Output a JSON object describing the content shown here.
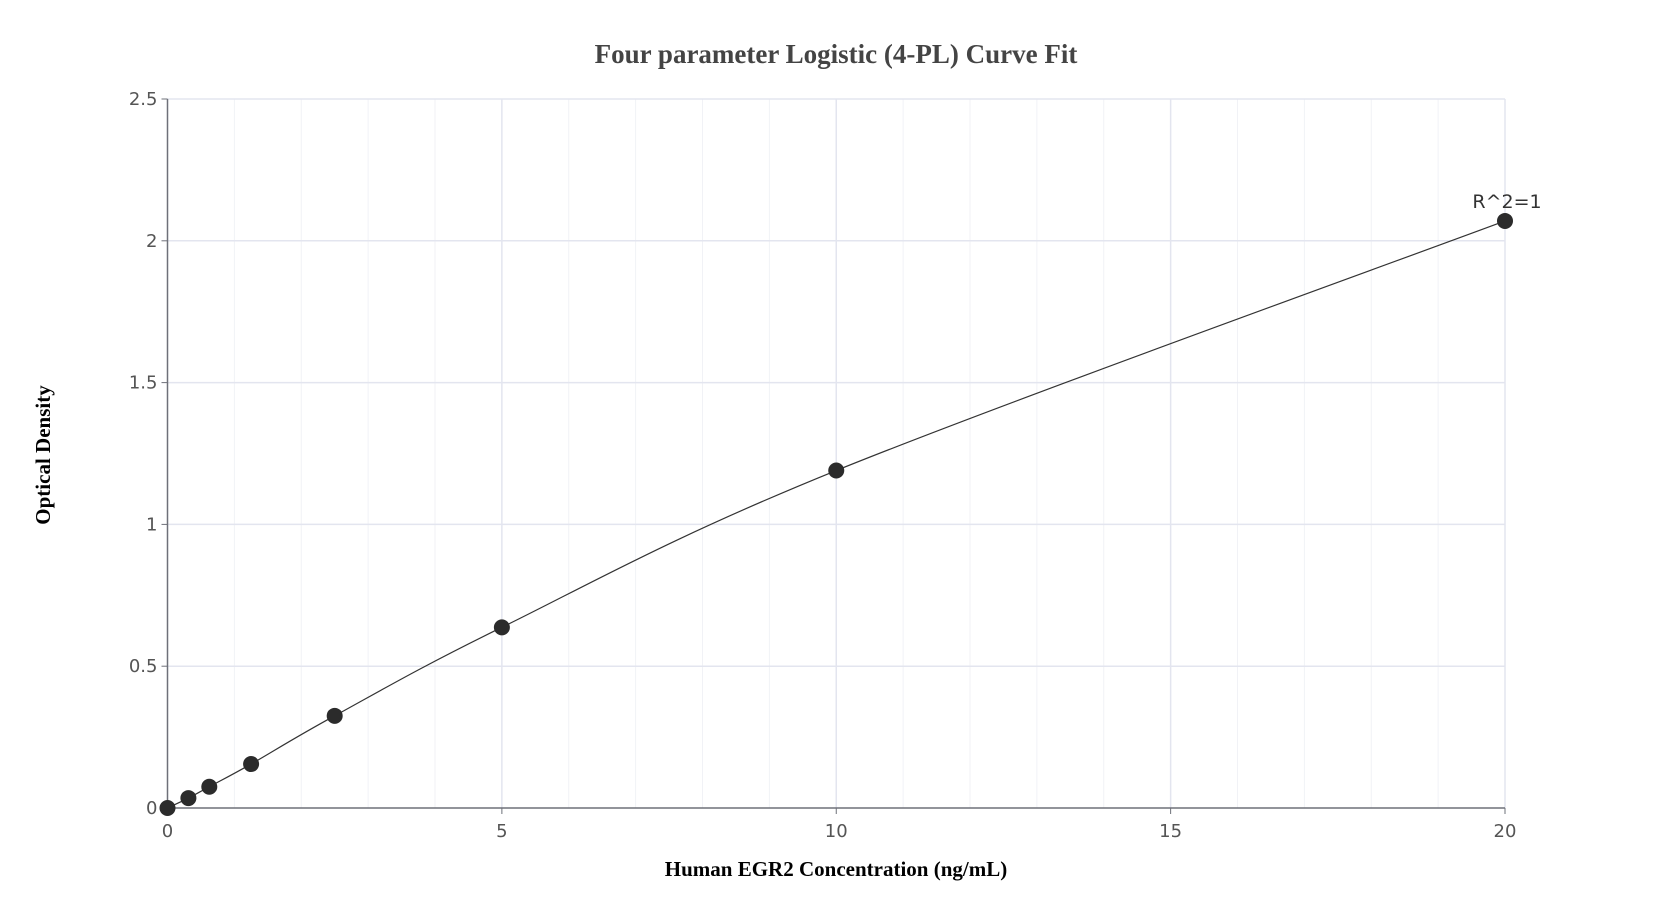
{
  "chart_data": {
    "type": "scatter",
    "title": "Four parameter Logistic (4-PL) Curve Fit",
    "xlabel": "Human EGR2 Concentration (ng/mL)",
    "ylabel": "Optical Density",
    "xlim": [
      0,
      20
    ],
    "ylim": [
      0,
      2.5
    ],
    "xticks": [
      0,
      5,
      10,
      15,
      20
    ],
    "yticks": [
      0,
      0.5,
      1,
      1.5,
      2,
      2.5
    ],
    "grid": true,
    "annotation": "R^2=1",
    "series": [
      {
        "x": [
          0,
          0.3125,
          0.625,
          1.25,
          2.5,
          5,
          10,
          20
        ],
        "y": [
          0,
          0.035,
          0.075,
          0.155,
          0.325,
          0.637,
          1.19,
          2.07
        ],
        "fit": "4-PL curve",
        "marker_color": "#2b2b2b",
        "line_color": "#333333"
      }
    ]
  }
}
